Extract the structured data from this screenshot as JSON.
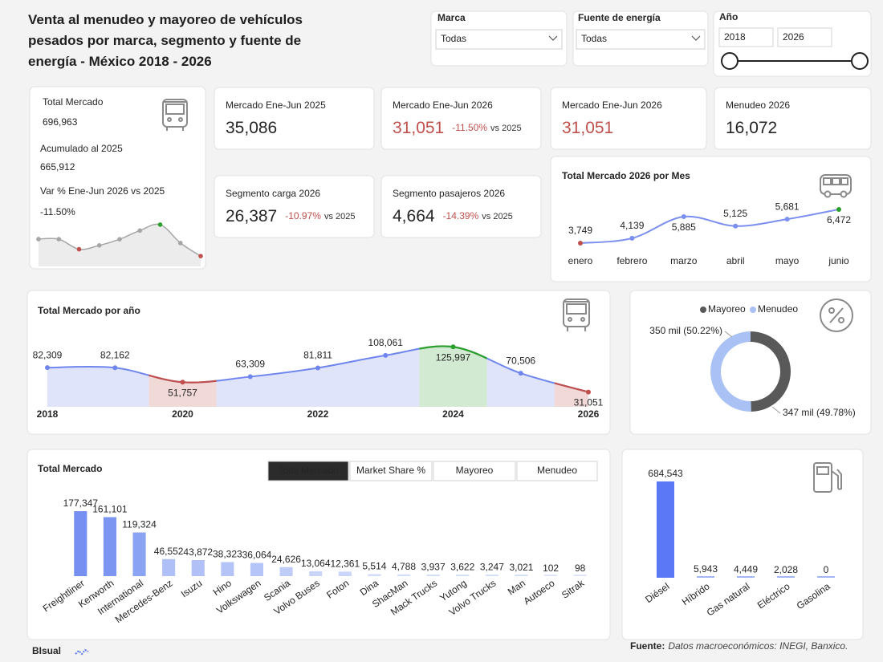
{
  "header": {
    "title": "Venta al menudeo y mayoreo de vehículos pesados por marca, segmento y fuente de energía - México 2018 - 2026"
  },
  "filters": [
    {
      "label": "Marca",
      "value": "Todas"
    },
    {
      "label": "Fuente de energía",
      "value": "Todas"
    }
  ],
  "year_filter": {
    "label": "Año",
    "from": "2018",
    "to": "2026"
  },
  "kpis": {
    "total": {
      "label": "Total Mercado",
      "value": "696,963",
      "sub_label": "Acumulado al 2025",
      "sub_value": "665,912",
      "change_label": "Var % Ene-Jun 2026 vs 2025",
      "change": "-11.50%",
      "sparkline_color": "#a6a6a6"
    },
    "cards": [
      {
        "label": "Mercado Ene-Jun 2025",
        "value": "35,086",
        "value_color": "#252525"
      },
      {
        "label": "Mercado Ene-Jun 2026",
        "value": "31,051",
        "value_color": "#c0504d",
        "change": "-11.50%",
        "comparison": "vs 2025"
      },
      {
        "label": "Mercado Ene-Jun 2026",
        "value": "31,051",
        "value_color": "#c0504d"
      },
      {
        "label": "Menudeo 2026",
        "value": "16,072",
        "value_color": "#252525"
      },
      {
        "label": "Segmento carga 2026",
        "value": "26,387",
        "value_color": "#252525",
        "change": "-10.97%",
        "comparison": "vs 2025"
      },
      {
        "label": "Segmento pasajeros 2026",
        "value": "4,664",
        "value_color": "#252525",
        "change": "-14.39%",
        "comparison": "vs 2025"
      }
    ]
  },
  "chart_data": [
    {
      "type": "line",
      "title": "Total Mercado 2026 por Mes",
      "categories": [
        "enero",
        "febrero",
        "marzo",
        "abril",
        "mayo",
        "junio"
      ],
      "values": [
        3749,
        4139,
        5885,
        5125,
        5681,
        6472
      ],
      "value_labels": [
        "3,749",
        "4,139",
        "5,885",
        "5,125",
        "5,681",
        "6,472"
      ],
      "color": "#7b8ff0",
      "point_colors": [
        "#c0504d",
        "#7b8ff0",
        "#7b8ff0",
        "#7b8ff0",
        "#7b8ff0",
        "#2ca02c"
      ],
      "ylim": [
        3000,
        7000
      ]
    },
    {
      "type": "area_line",
      "title": "Total Mercado por año",
      "categories": [
        "2018",
        null,
        "2020",
        null,
        "2022",
        null,
        "2024",
        null,
        "2026"
      ],
      "values": [
        82309,
        82162,
        51757,
        63309,
        81811,
        108061,
        125997,
        70506,
        31051
      ],
      "value_labels": [
        "82,309",
        "82,162",
        "51,757",
        "63,309",
        "81,811",
        "108,061",
        "125,997",
        "70,506",
        "31,051"
      ],
      "color": "#6f86ee",
      "point_colors": [
        "#6f86ee",
        "#6f86ee",
        "#c0504d",
        "#6f86ee",
        "#6f86ee",
        "#6f86ee",
        "#2ca02c",
        "#6f86ee",
        "#c0504d"
      ],
      "ylim": [
        0,
        150000
      ]
    },
    {
      "type": "donut",
      "categories": [
        "Mayoreo",
        "Menudeo"
      ],
      "values": [
        49.78,
        50.22
      ],
      "value_labels": [
        "347 mil (49.78%)",
        "350 mil (50.22%)"
      ],
      "colors": [
        "#595959",
        "#a9c1f4"
      ]
    },
    {
      "type": "bar",
      "title": "Total Mercado",
      "tabs": [
        "Total Mercado",
        "Market Share %",
        "Mayoreo",
        "Menudeo"
      ],
      "active_tab": 0,
      "categories": [
        "Freightliner",
        "Kenworth",
        "International",
        "Mercedes-Benz",
        "Isuzu",
        "Hino",
        "Volkswagen",
        "Scania",
        "Volvo Buses",
        "Foton",
        "Dina",
        "ShacMan",
        "Mack Trucks",
        "Yutong",
        "Volvo Trucks",
        "Man",
        "Autoeco",
        "Sitrak"
      ],
      "values": [
        177347,
        161101,
        119324,
        46552,
        43872,
        38323,
        36064,
        24626,
        13064,
        12361,
        5514,
        4788,
        3937,
        3622,
        3247,
        3021,
        102,
        98
      ],
      "value_labels": [
        "177,347",
        "161,101",
        "119,324",
        "46,552",
        "43,872",
        "38,323",
        "36,064",
        "24,626",
        "13,064",
        "12,361",
        "5,514",
        "4,788",
        "3,937",
        "3,622",
        "3,247",
        "3,021",
        "102",
        "98"
      ],
      "color_scale": [
        "#dfe6fb",
        "#6d8af0"
      ],
      "ylim": [
        0,
        200000
      ]
    },
    {
      "type": "bar",
      "categories": [
        "Diésel",
        "Híbrido",
        "Gas natural",
        "Eléctrico",
        "Gasolina"
      ],
      "values": [
        684543,
        5943,
        4449,
        2028,
        0
      ],
      "value_labels": [
        "684,543",
        "5,943",
        "4,449",
        "2,028",
        "0"
      ],
      "colors": [
        "#5b78f5",
        "#a3b6f6",
        "#a3b6f6",
        "#a3b6f6",
        "#a3b6f6"
      ],
      "ylim": [
        0,
        700000
      ]
    }
  ],
  "footer": {
    "logo": "BIsual",
    "source_label": "Fuente:",
    "source": "Datos macroeconómicos: INEGI, Banxico."
  }
}
